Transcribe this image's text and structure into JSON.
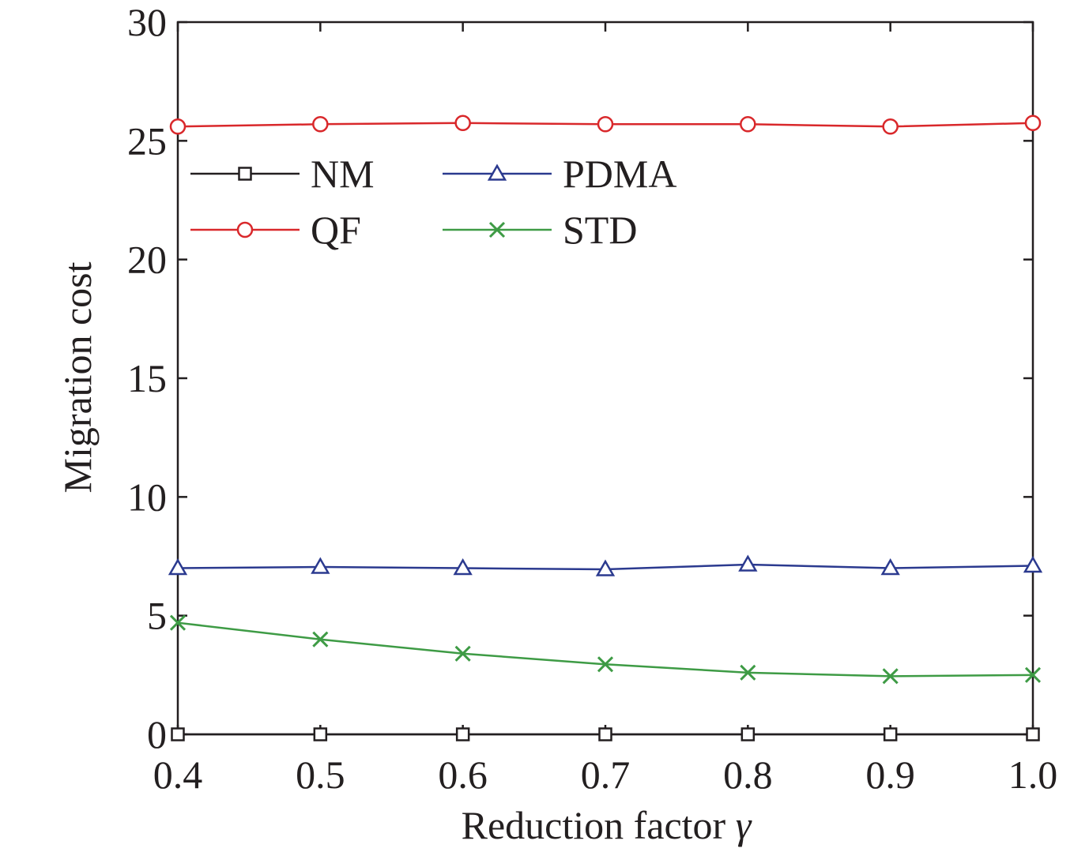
{
  "chart_data": {
    "type": "line",
    "title": "",
    "xlabel": "Reduction factor",
    "xlabel_symbol": "γ",
    "ylabel": "Migration cost",
    "x": [
      0.4,
      0.5,
      0.6,
      0.7,
      0.8,
      0.9,
      1.0
    ],
    "x_tick_labels": [
      "0.4",
      "0.5",
      "0.6",
      "0.7",
      "0.8",
      "0.9",
      "1.0"
    ],
    "xlim": [
      0.4,
      1.0
    ],
    "ylim": [
      0,
      30
    ],
    "y_ticks": [
      0,
      5,
      10,
      15,
      20,
      25,
      30
    ],
    "y_tick_labels": [
      "0",
      "5",
      "10",
      "15",
      "20",
      "25",
      "30"
    ],
    "grid": false,
    "legend_position": "top-left, two columns",
    "series": [
      {
        "name": "NM",
        "values": [
          0,
          0,
          0,
          0,
          0,
          0,
          0
        ],
        "color": "#231f20",
        "marker": "square"
      },
      {
        "name": "PDMA",
        "values": [
          7.0,
          7.05,
          7.0,
          6.95,
          7.15,
          7.0,
          7.1
        ],
        "color": "#2b3a8f",
        "marker": "triangle"
      },
      {
        "name": "QF",
        "values": [
          25.6,
          25.7,
          25.75,
          25.7,
          25.7,
          25.6,
          25.75
        ],
        "color": "#d9282b",
        "marker": "circle"
      },
      {
        "name": "STD",
        "values": [
          4.7,
          4.0,
          3.4,
          2.95,
          2.6,
          2.45,
          2.5
        ],
        "color": "#3e9b45",
        "marker": "x"
      }
    ]
  }
}
